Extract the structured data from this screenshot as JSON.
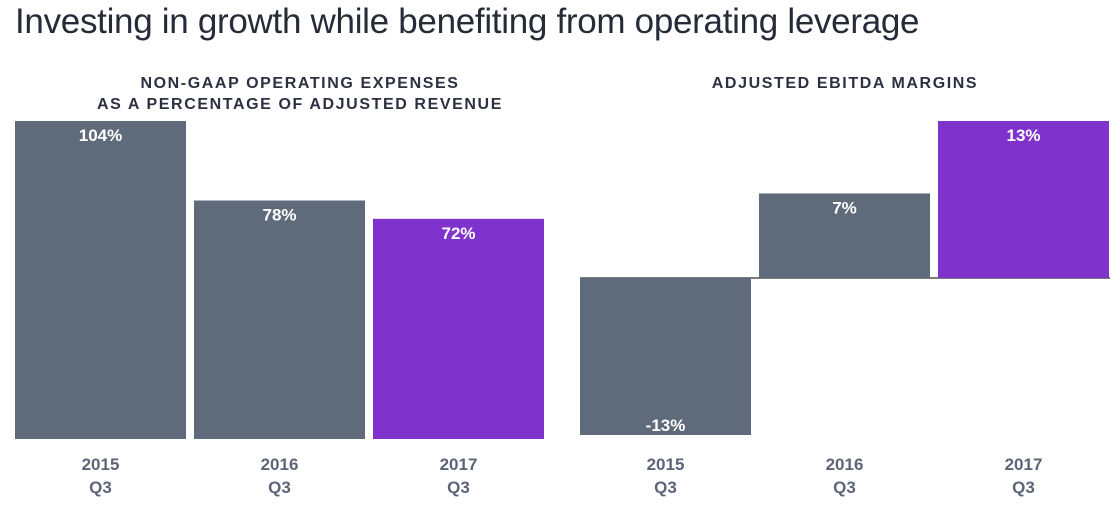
{
  "header": {
    "title": "Investing in growth while benefiting from operating leverage"
  },
  "colors": {
    "gray": "#5f6a7b",
    "purple": "#7f33cc",
    "baseline": "#2a2a2a"
  },
  "chart_data": [
    {
      "type": "bar",
      "title_lines": [
        "NON-GAAP OPERATING EXPENSES",
        "AS A PERCENTAGE OF ADJUSTED REVENUE"
      ],
      "categories": [
        [
          "2015",
          "Q3"
        ],
        [
          "2016",
          "Q3"
        ],
        [
          "2017",
          "Q3"
        ]
      ],
      "values": [
        104,
        78,
        72
      ],
      "labels": [
        "104%",
        "78%",
        "72%"
      ],
      "unit": "%",
      "ylim": [
        0,
        104
      ],
      "highlight_index": 2
    },
    {
      "type": "bar",
      "title_lines": [
        "ADJUSTED EBITDA MARGINS"
      ],
      "categories": [
        [
          "2015",
          "Q3"
        ],
        [
          "2016",
          "Q3"
        ],
        [
          "2017",
          "Q3"
        ]
      ],
      "values": [
        -13,
        7,
        13
      ],
      "labels": [
        "-13%",
        "7%",
        "13%"
      ],
      "unit": "%",
      "ylim": [
        -13,
        13
      ],
      "highlight_index": 2
    }
  ]
}
